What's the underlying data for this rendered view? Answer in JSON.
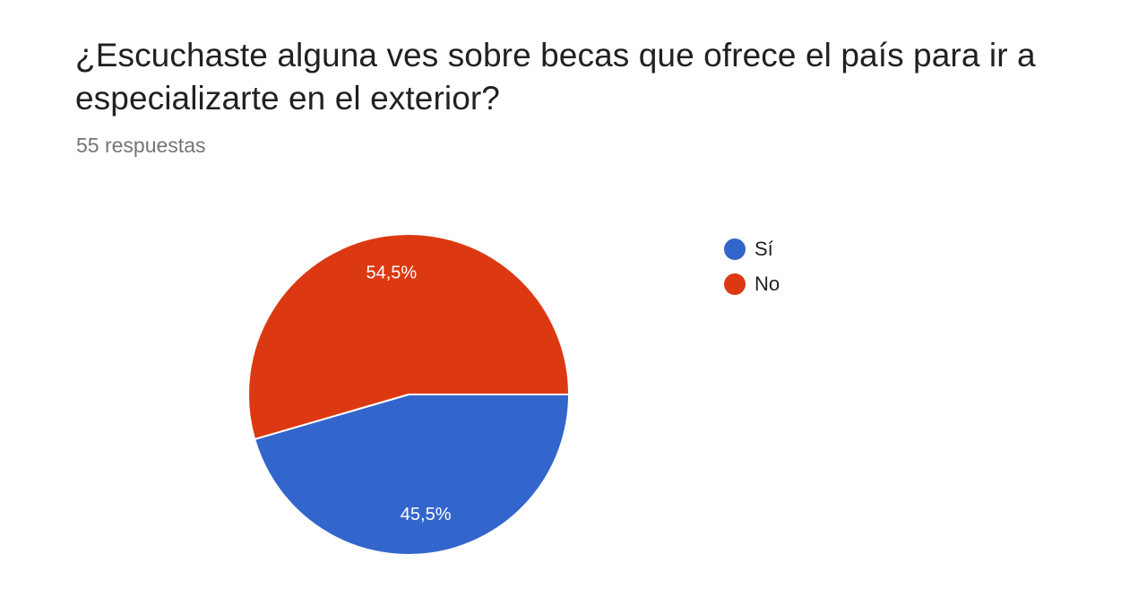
{
  "title": "¿Escuchaste alguna ves sobre becas que ofrece el país para ir a especializarte en el exterior?",
  "response_count": "55 respuestas",
  "chart_data": {
    "type": "pie",
    "categories": [
      "Sí",
      "No"
    ],
    "values": [
      45.5,
      54.5
    ],
    "value_labels": [
      "45,5%",
      "54,5%"
    ],
    "colors": [
      "#3366cc",
      "#dc3912"
    ],
    "legend_position": "right"
  }
}
